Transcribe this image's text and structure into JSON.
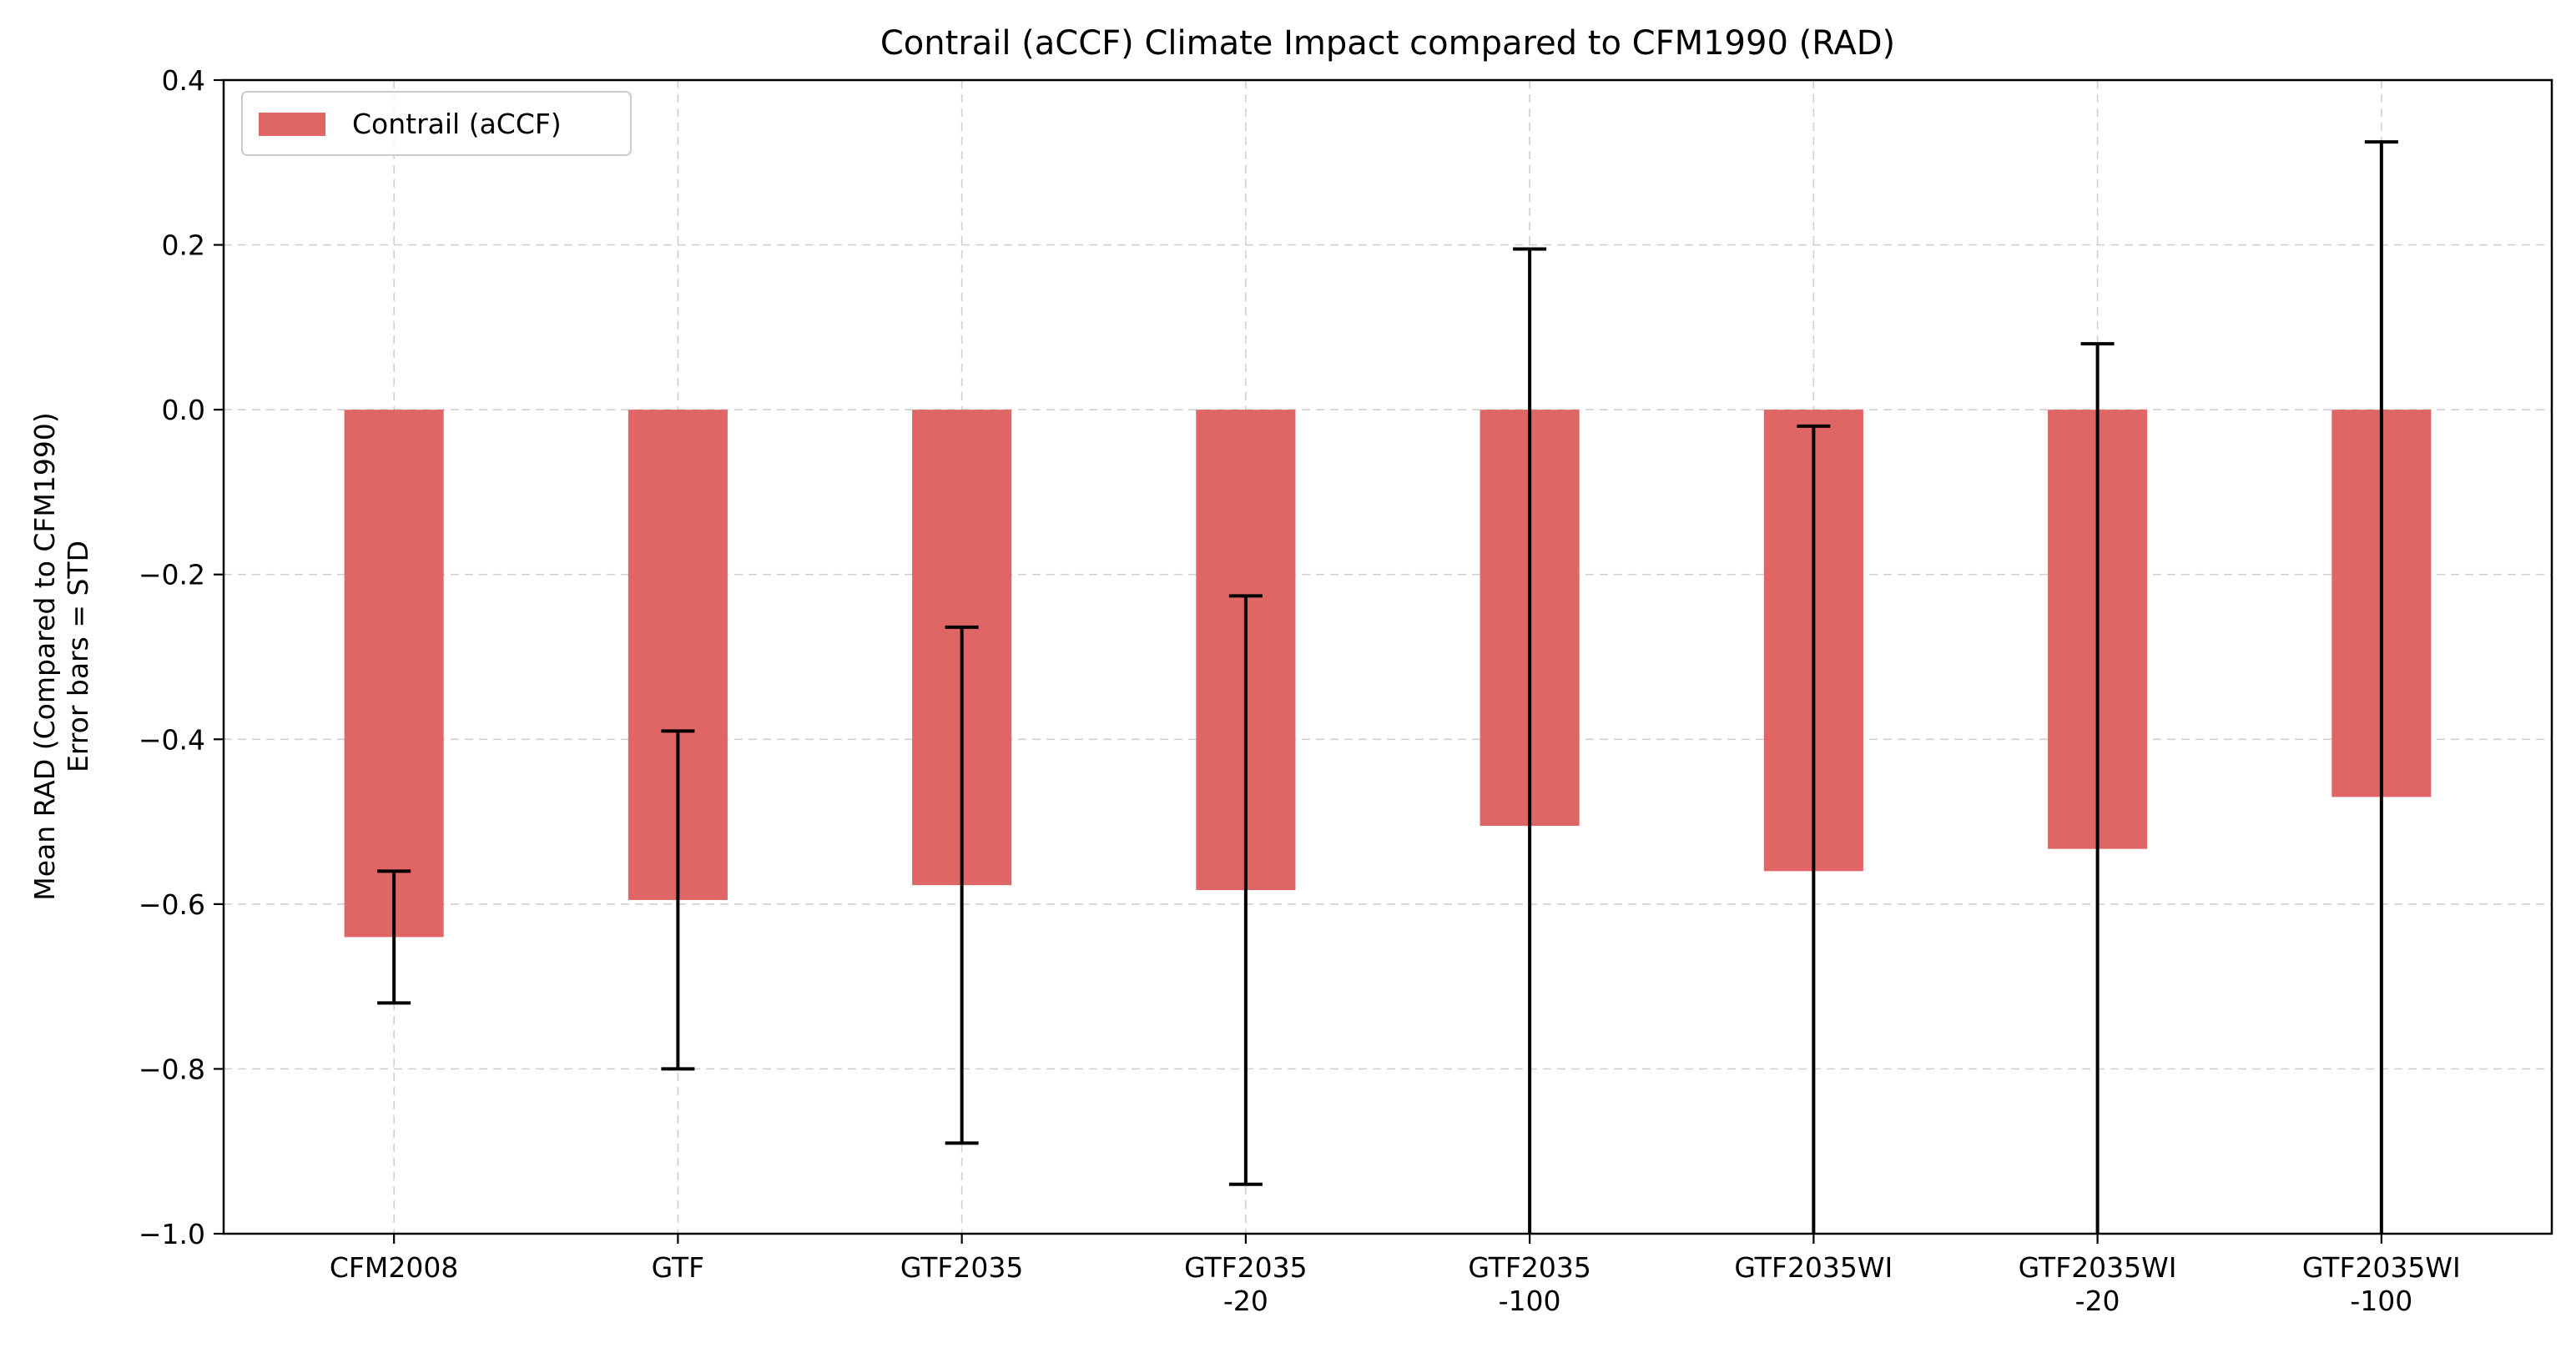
{
  "chart_data": {
    "type": "bar",
    "title": "Contrail (aCCF) Climate Impact compared to CFM1990 (RAD)",
    "xlabel": "",
    "ylabel_lines": [
      "Mean RAD (Compared to CFM1990)",
      "Error bars = STD"
    ],
    "categories": [
      [
        "CFM2008"
      ],
      [
        "GTF"
      ],
      [
        "GTF2035"
      ],
      [
        "GTF2035",
        "-20"
      ],
      [
        "GTF2035",
        "-100"
      ],
      [
        "GTF2035WI"
      ],
      [
        "GTF2035WI",
        "-20"
      ],
      [
        "GTF2035WI",
        "-100"
      ]
    ],
    "series": [
      {
        "name": "Contrail (aCCF)",
        "color": "#e06666",
        "values": [
          -0.64,
          -0.595,
          -0.577,
          -0.583,
          -0.505,
          -0.56,
          -0.533,
          -0.47
        ],
        "error_std": [
          0.08,
          0.205,
          0.313,
          0.357,
          0.7,
          0.54,
          0.613,
          0.795
        ]
      }
    ],
    "ylim": [
      -1.0,
      0.4
    ],
    "yticks": [
      0.4,
      0.2,
      0.0,
      -0.2,
      -0.4,
      -0.6,
      -0.8,
      -1.0
    ],
    "ytick_labels": [
      "0.4",
      "0.2",
      "0.0",
      "−0.2",
      "−0.4",
      "−0.6",
      "−0.8",
      "−1.0"
    ],
    "grid": true,
    "legend_position": "top-left"
  }
}
